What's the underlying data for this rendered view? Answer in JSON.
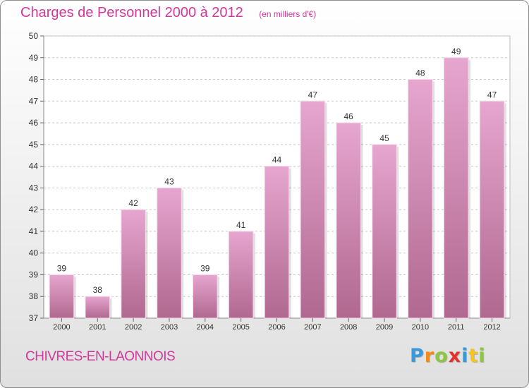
{
  "header": {
    "title": "Charges de Personnel 2000 à 2012",
    "subtitle": "(en milliers d'€)"
  },
  "footer": {
    "commune": "CHIVRES-EN-LAONNOIS",
    "logo_text": "Proxiti",
    "logo_colors": [
      "#3a9ad9",
      "#f28a1c",
      "#8ec63f",
      "#e4322b",
      "#3a9ad9",
      "#f6c41a",
      "#8ec63f"
    ]
  },
  "colors": {
    "accent": "#d2389a",
    "bar_top": "#e6a6cf",
    "bar_bottom": "#b0688f",
    "grid": "#c8c8c8",
    "axis_text": "#333333"
  },
  "chart_data": {
    "type": "bar",
    "title": "Charges de Personnel 2000 à 2012",
    "subtitle": "(en milliers d'€)",
    "categories": [
      "2000",
      "2001",
      "2002",
      "2003",
      "2004",
      "2005",
      "2006",
      "2007",
      "2008",
      "2009",
      "2010",
      "2011",
      "2012"
    ],
    "values": [
      39,
      38,
      42,
      43,
      39,
      41,
      44,
      47,
      46,
      45,
      48,
      49,
      47
    ],
    "ylim": [
      37,
      50
    ],
    "yticks": [
      37,
      38,
      39,
      40,
      41,
      42,
      43,
      44,
      45,
      46,
      47,
      48,
      49,
      50
    ],
    "grid": true,
    "xlabel": "",
    "ylabel": ""
  }
}
